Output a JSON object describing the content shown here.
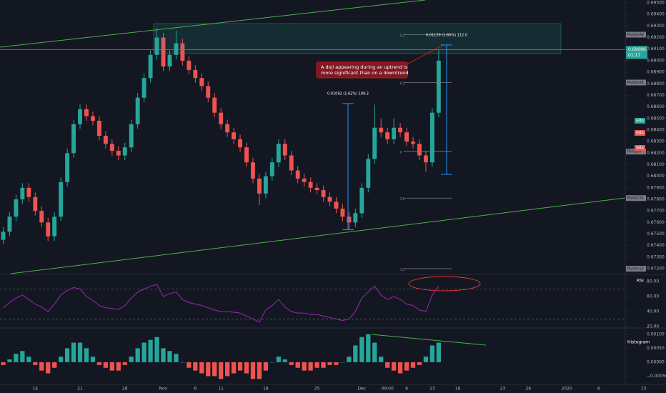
{
  "chart_data": {
    "type": "candlestick",
    "categories": [
      null,
      null,
      null,
      null,
      null,
      "14",
      null,
      null,
      null,
      null,
      null,
      null,
      "21",
      null,
      null,
      null,
      null,
      null,
      null,
      "28",
      null,
      null,
      null,
      null,
      null,
      "Nov",
      null,
      null,
      null,
      null,
      "6",
      null,
      null,
      null,
      "11",
      null,
      null,
      null,
      null,
      null,
      null,
      "18",
      null,
      null,
      null,
      null,
      null,
      null,
      null,
      "25",
      null,
      null,
      null,
      null,
      null,
      null,
      "Dec",
      null,
      null,
      null,
      "09:00",
      null,
      null,
      "9",
      null,
      null,
      null,
      "13",
      null,
      null,
      null,
      "16",
      null,
      null,
      null,
      null,
      null,
      null,
      "23",
      null,
      null,
      null,
      "26",
      null,
      null,
      null,
      null,
      null,
      "2020",
      null,
      null,
      null,
      null,
      "6",
      null,
      null,
      null,
      null,
      null,
      null,
      "13",
      null,
      null,
      null
    ],
    "candles": [
      [
        0.6745,
        0.6756,
        0.6741,
        0.6752
      ],
      [
        0.6752,
        0.6769,
        0.6748,
        0.6765
      ],
      [
        0.6765,
        0.6784,
        0.6761,
        0.678
      ],
      [
        0.678,
        0.6794,
        0.6776,
        0.679
      ],
      [
        0.679,
        0.6794,
        0.6778,
        0.6782
      ],
      [
        0.6782,
        0.6786,
        0.6766,
        0.677
      ],
      [
        0.677,
        0.6774,
        0.6756,
        0.676
      ],
      [
        0.676,
        0.6764,
        0.6744,
        0.6748
      ],
      [
        0.6748,
        0.6769,
        0.6744,
        0.6765
      ],
      [
        0.6765,
        0.6799,
        0.6761,
        0.6795
      ],
      [
        0.6795,
        0.6824,
        0.6791,
        0.682
      ],
      [
        0.682,
        0.6849,
        0.6816,
        0.6845
      ],
      [
        0.6845,
        0.6862,
        0.6841,
        0.6858
      ],
      [
        0.6858,
        0.6862,
        0.6848,
        0.6852
      ],
      [
        0.6852,
        0.6856,
        0.6844,
        0.6848
      ],
      [
        0.6848,
        0.6852,
        0.6831,
        0.6835
      ],
      [
        0.6835,
        0.6839,
        0.6824,
        0.6828
      ],
      [
        0.6828,
        0.6832,
        0.6818,
        0.6822
      ],
      [
        0.6822,
        0.6826,
        0.6814,
        0.6818
      ],
      [
        0.6818,
        0.6829,
        0.6814,
        0.6825
      ],
      [
        0.6825,
        0.6849,
        0.6821,
        0.6845
      ],
      [
        0.6845,
        0.6872,
        0.6841,
        0.6868
      ],
      [
        0.6868,
        0.6889,
        0.6864,
        0.6885
      ],
      [
        0.6885,
        0.6909,
        0.6881,
        0.6905
      ],
      [
        0.6905,
        0.6928,
        0.6901,
        0.692
      ],
      [
        0.692,
        0.6924,
        0.6891,
        0.6895
      ],
      [
        0.6895,
        0.6909,
        0.6891,
        0.6905
      ],
      [
        0.6905,
        0.6926,
        0.6901,
        0.6915
      ],
      [
        0.6915,
        0.6919,
        0.6896,
        0.69
      ],
      [
        0.69,
        0.6904,
        0.6888,
        0.6892
      ],
      [
        0.6892,
        0.6896,
        0.6881,
        0.6885
      ],
      [
        0.6885,
        0.6889,
        0.6874,
        0.6878
      ],
      [
        0.6878,
        0.6882,
        0.6864,
        0.6868
      ],
      [
        0.6868,
        0.6872,
        0.6851,
        0.6855
      ],
      [
        0.6855,
        0.6859,
        0.6841,
        0.6845
      ],
      [
        0.6845,
        0.6849,
        0.6834,
        0.6838
      ],
      [
        0.6838,
        0.6842,
        0.6828,
        0.6832
      ],
      [
        0.6832,
        0.6836,
        0.6821,
        0.6825
      ],
      [
        0.6825,
        0.6829,
        0.6808,
        0.6812
      ],
      [
        0.6812,
        0.6816,
        0.6794,
        0.6798
      ],
      [
        0.6798,
        0.6802,
        0.6775,
        0.6785
      ],
      [
        0.6785,
        0.6804,
        0.6781,
        0.68
      ],
      [
        0.68,
        0.6816,
        0.6796,
        0.6812
      ],
      [
        0.6812,
        0.6832,
        0.6808,
        0.6828
      ],
      [
        0.6828,
        0.6832,
        0.6814,
        0.6818
      ],
      [
        0.6818,
        0.6822,
        0.6801,
        0.6805
      ],
      [
        0.6805,
        0.6809,
        0.6794,
        0.6798
      ],
      [
        0.6798,
        0.6802,
        0.6791,
        0.6795
      ],
      [
        0.6795,
        0.6799,
        0.6786,
        0.679
      ],
      [
        0.679,
        0.6794,
        0.6784,
        0.6788
      ],
      [
        0.6788,
        0.6792,
        0.6778,
        0.6782
      ],
      [
        0.6782,
        0.6786,
        0.6774,
        0.6778
      ],
      [
        0.6778,
        0.6782,
        0.6768,
        0.6772
      ],
      [
        0.6772,
        0.6776,
        0.6761,
        0.6765
      ],
      [
        0.6765,
        0.6769,
        0.6754,
        0.676
      ],
      [
        0.676,
        0.6772,
        0.6756,
        0.6768
      ],
      [
        0.6768,
        0.6794,
        0.6764,
        0.679
      ],
      [
        0.679,
        0.6819,
        0.6786,
        0.6815
      ],
      [
        0.6815,
        0.6862,
        0.6811,
        0.6842
      ],
      [
        0.6842,
        0.685,
        0.6834,
        0.6838
      ],
      [
        0.6838,
        0.6842,
        0.6828,
        0.6832
      ],
      [
        0.6832,
        0.685,
        0.6828,
        0.6842
      ],
      [
        0.6842,
        0.6846,
        0.6834,
        0.6838
      ],
      [
        0.6838,
        0.6842,
        0.6826,
        0.683
      ],
      [
        0.683,
        0.6834,
        0.6824,
        0.6828
      ],
      [
        0.6828,
        0.6832,
        0.6814,
        0.6818
      ],
      [
        0.6818,
        0.6822,
        0.6804,
        0.6812
      ],
      [
        0.6812,
        0.6859,
        0.6808,
        0.6855
      ],
      [
        0.6855,
        0.691,
        0.6851,
        0.69
      ],
      null,
      null,
      null,
      null,
      null,
      null,
      null,
      null,
      null,
      null,
      null,
      null,
      null,
      null,
      null,
      null,
      null,
      null,
      null,
      null,
      null,
      null,
      null,
      null,
      null,
      null,
      null,
      null,
      null,
      null,
      null,
      null,
      null,
      null,
      null
    ],
    "up_color": "#26a69a",
    "down_color": "#ef5350",
    "ylim": [
      0.67157,
      0.69525
    ],
    "yticks": [
      {
        "value": 0.695,
        "label": "0.69500"
      },
      {
        "value": 0.694,
        "label": "0.69400"
      },
      {
        "value": 0.693,
        "label": "0.69300"
      },
      {
        "value": 0.692,
        "label": "0.69200"
      },
      {
        "value": 0.691,
        "label": "0.69100"
      },
      {
        "value": 0.69,
        "label": "0.69000"
      },
      {
        "value": 0.689,
        "label": "0.68900"
      },
      {
        "value": 0.688,
        "label": "0.68800"
      },
      {
        "value": 0.687,
        "label": "0.68700"
      },
      {
        "value": 0.686,
        "label": "0.68600"
      },
      {
        "value": 0.685,
        "label": "0.68500"
      },
      {
        "value": 0.684,
        "label": "0.68400"
      },
      {
        "value": 0.683,
        "label": "0.68300"
      },
      {
        "value": 0.682,
        "label": "0.68200"
      },
      {
        "value": 0.681,
        "label": "0.68100"
      },
      {
        "value": 0.68,
        "label": "0.68000"
      },
      {
        "value": 0.679,
        "label": "0.67900"
      },
      {
        "value": 0.678,
        "label": "0.67800"
      },
      {
        "value": 0.677,
        "label": "0.67700"
      },
      {
        "value": 0.676,
        "label": "0.67600"
      },
      {
        "value": 0.675,
        "label": "0.67500"
      },
      {
        "value": 0.674,
        "label": "0.67400"
      },
      {
        "value": 0.673,
        "label": "0.67300"
      },
      {
        "value": 0.672,
        "label": "0.67200"
      }
    ],
    "last_price": 0.69096,
    "countdown": "01:17",
    "pivots": [
      {
        "name": "R2",
        "badge": "Pivots:R2",
        "value": 0.69225
      },
      {
        "name": "R1",
        "badge": "Pivots:R1",
        "value": 0.68811
      },
      {
        "name": "P",
        "badge": "Pivots:P",
        "value": 0.68213
      },
      {
        "name": "S1",
        "badge": "Pivots:S1",
        "value": 0.67811
      },
      {
        "name": "S2",
        "badge": "Pivots:S2",
        "value": 0.672
      }
    ],
    "indicator_badges": [
      {
        "label": "EMA",
        "color": "#26a69a"
      },
      {
        "label": "EMA",
        "color": "#ef5350"
      },
      {
        "label": "SMA",
        "color": "#ef5350"
      }
    ],
    "measurements": [
      {
        "label": "0.01092 (1.62%) 109.2",
        "from": 0.67537,
        "to": 0.68629
      },
      {
        "label": "0.01120 (1.65%) 112.0",
        "from": 0.68016,
        "to": 0.69136
      }
    ],
    "annotation": [
      "A doji appearing during an uptrend is",
      "more significant than on a downtrend."
    ],
    "rsi": {
      "title": "RSI",
      "color": "#9c27b0",
      "ylim": [
        19,
        88.6
      ],
      "yticks": [
        {
          "value": 80,
          "label": "80.00"
        },
        {
          "value": 60,
          "label": "60.00"
        },
        {
          "value": 40,
          "label": "40.00"
        },
        {
          "value": 20,
          "label": "20.00"
        }
      ],
      "bands": [
        70,
        30
      ],
      "values": [
        45,
        52,
        58,
        62,
        56,
        50,
        46,
        40,
        50,
        62,
        68,
        72,
        70,
        60,
        55,
        48,
        45,
        44,
        43,
        48,
        58,
        66,
        70,
        74,
        76,
        60,
        64,
        66,
        56,
        52,
        50,
        48,
        45,
        42,
        40,
        40,
        39,
        38,
        34,
        30,
        26,
        42,
        48,
        56,
        46,
        40,
        38,
        38,
        36,
        36,
        34,
        32,
        30,
        28,
        30,
        40,
        58,
        66,
        74,
        62,
        56,
        60,
        56,
        50,
        48,
        42,
        40,
        62,
        74,
        null,
        null,
        null,
        null,
        null,
        null,
        null,
        null,
        null,
        null,
        null,
        null,
        null,
        null,
        null,
        null,
        null,
        null,
        null,
        null,
        null,
        null,
        null,
        null,
        null,
        null,
        null,
        null,
        null,
        null,
        null,
        null,
        null,
        null,
        null
      ]
    },
    "histogram": {
      "title": "Histogram",
      "pos_color": "#26a69a",
      "neg_color": "#ef5350",
      "ylim": [
        -0.00077,
        0.0012
      ],
      "yticks": [
        {
          "value": 0.001,
          "label": "0.00100"
        },
        {
          "value": 0.0005,
          "label": "0.00050"
        },
        {
          "value": 0,
          "label": "0.00000"
        },
        {
          "value": -0.0005,
          "label": "−0.00050"
        }
      ],
      "values": [
        -0.0001,
        0.0001,
        0.0003,
        0.0004,
        0.0002,
        -0.0001,
        -0.0003,
        -0.0004,
        -0.0002,
        0.0002,
        0.0005,
        0.0007,
        0.0007,
        0.0005,
        0.0002,
        -0.0001,
        -0.0002,
        -0.0003,
        -0.0003,
        -0.0001,
        0.0002,
        0.0005,
        0.0007,
        0.0008,
        0.0009,
        0.0005,
        0.0004,
        0.0003,
        0,
        -0.0002,
        -0.0003,
        -0.0004,
        -0.0005,
        -0.0005,
        -0.0006,
        -0.0005,
        -0.0004,
        -0.0003,
        -0.0004,
        -0.0006,
        -0.0006,
        -0.0003,
        0,
        0.0002,
        0.0001,
        -0.0001,
        -0.0002,
        -0.0003,
        -0.0003,
        -0.0002,
        -0.0002,
        -0.0001,
        -0.0001,
        0,
        0.0002,
        0.0006,
        0.0009,
        0.001,
        0.0007,
        0.0002,
        -0.0002,
        -0.0003,
        -0.0004,
        -0.0003,
        -0.0002,
        -0.0001,
        0.0002,
        0.0006,
        0.0007,
        null,
        null,
        null,
        null,
        null,
        null,
        null,
        null,
        null,
        null,
        null,
        null,
        null,
        null,
        null,
        null,
        null,
        null,
        null,
        null,
        null,
        null,
        null,
        null,
        null,
        null,
        null,
        null,
        null,
        null,
        null,
        null,
        null,
        null,
        null
      ]
    }
  }
}
